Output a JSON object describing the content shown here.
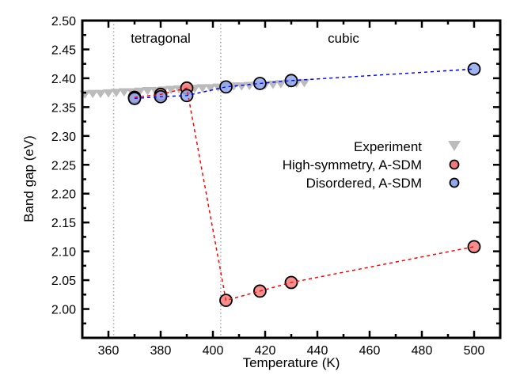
{
  "chart_data": {
    "type": "scatter",
    "xlabel": "Temperature (K)",
    "ylabel": "Band gap (eV)",
    "xlim": [
      350,
      510
    ],
    "ylim": [
      1.95,
      2.5
    ],
    "xticks": [
      360,
      380,
      400,
      420,
      440,
      460,
      480,
      500
    ],
    "yticks": [
      2.0,
      2.05,
      2.1,
      2.15,
      2.2,
      2.25,
      2.3,
      2.35,
      2.4,
      2.45,
      2.5
    ],
    "grid": false,
    "legend_placement": "right",
    "phase_boundaries": [
      362,
      403
    ],
    "annotations": [
      {
        "text": "tetragonal",
        "x": 380
      },
      {
        "text": "cubic",
        "x": 450
      }
    ],
    "series": [
      {
        "name": "Experiment",
        "marker": "triangle-down",
        "color": "#bbbbbb",
        "x": [
          351,
          354,
          357,
          360,
          363,
          366,
          369,
          372,
          375,
          378,
          381,
          384,
          387,
          390,
          393,
          396,
          399,
          402,
          405,
          408,
          411,
          414,
          417,
          420,
          423,
          426,
          429,
          432,
          435
        ],
        "y": [
          2.373,
          2.374,
          2.374,
          2.375,
          2.376,
          2.377,
          2.377,
          2.378,
          2.379,
          2.379,
          2.38,
          2.381,
          2.382,
          2.382,
          2.383,
          2.384,
          2.384,
          2.385,
          2.386,
          2.387,
          2.387,
          2.388,
          2.389,
          2.389,
          2.39,
          2.391,
          2.392,
          2.392,
          2.393
        ]
      },
      {
        "name": "High-symmetry, A-SDM",
        "marker": "circle",
        "color": "#f47a7a",
        "line_color": "#ff0000",
        "x": [
          370,
          380,
          390,
          405,
          418,
          430,
          500
        ],
        "y": [
          2.367,
          2.372,
          2.383,
          2.015,
          2.031,
          2.046,
          2.108
        ]
      },
      {
        "name": "Disordered, A-SDM",
        "marker": "circle",
        "color": "#8fa8ea",
        "line_color": "#0000ff",
        "x": [
          370,
          380,
          390,
          405,
          418,
          430,
          500
        ],
        "y": [
          2.365,
          2.368,
          2.37,
          2.385,
          2.391,
          2.396,
          2.416
        ]
      }
    ]
  }
}
